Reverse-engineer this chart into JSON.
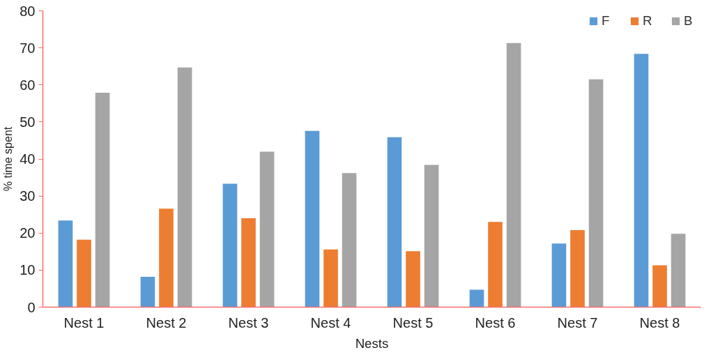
{
  "chart_data": {
    "type": "bar",
    "xlabel": "Nests",
    "ylabel": "% time spent",
    "categories": [
      "Nest 1",
      "Nest 2",
      "Nest 3",
      "Nest 4",
      "Nest 5",
      "Nest 6",
      "Nest 7",
      "Nest 8"
    ],
    "series": [
      {
        "name": "F",
        "color": "#5b9bd5",
        "values": [
          23.4,
          8.2,
          33.3,
          47.6,
          45.9,
          4.7,
          17.2,
          68.4
        ]
      },
      {
        "name": "R",
        "color": "#ed7d31",
        "values": [
          18.2,
          26.6,
          24.0,
          15.6,
          15.1,
          23.0,
          20.8,
          11.3
        ]
      },
      {
        "name": "B",
        "color": "#a5a5a5",
        "values": [
          57.9,
          64.7,
          42.0,
          36.2,
          38.4,
          71.3,
          61.5,
          19.8
        ]
      }
    ],
    "ylim": [
      0,
      80
    ],
    "yticks": [
      0,
      10,
      20,
      30,
      40,
      50,
      60,
      70,
      80
    ],
    "grid": false,
    "legend": "top right"
  }
}
